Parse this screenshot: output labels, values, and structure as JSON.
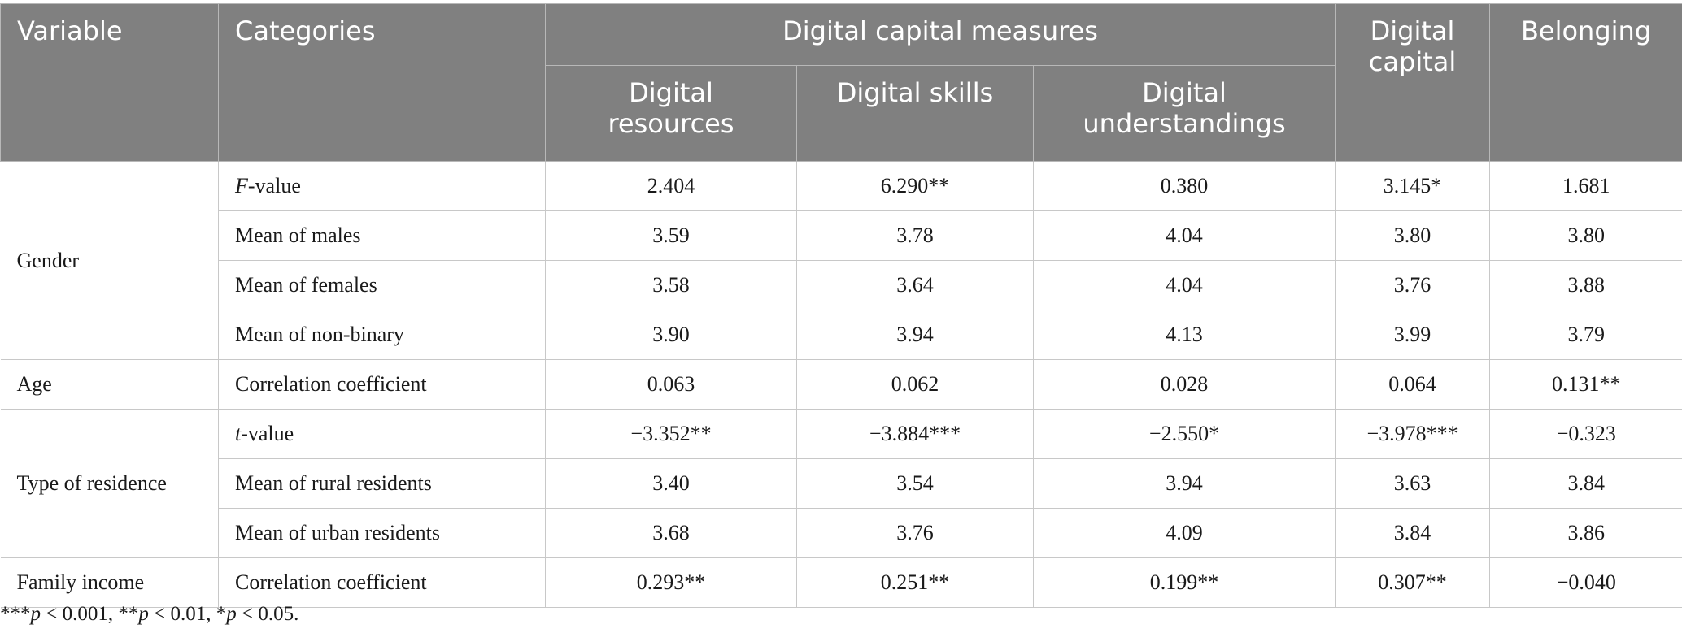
{
  "header": {
    "variable": "Variable",
    "categories": "Categories",
    "digital_capital_measures": "Digital capital measures",
    "digital_resources": "Digital resources",
    "digital_skills": "Digital skills",
    "digital_understandings": "Digital understandings",
    "digital_capital": "Digital capital",
    "belonging": "Belonging"
  },
  "rows": [
    {
      "variable": "Gender",
      "category_italic": "F",
      "category_rest": "-value",
      "values": [
        "2.404",
        "6.290**",
        "0.380",
        "3.145*",
        "1.681"
      ]
    },
    {
      "category": "Mean of males",
      "values": [
        "3.59",
        "3.78",
        "4.04",
        "3.80",
        "3.80"
      ]
    },
    {
      "category": "Mean of females",
      "values": [
        "3.58",
        "3.64",
        "4.04",
        "3.76",
        "3.88"
      ]
    },
    {
      "category": "Mean of non-binary",
      "values": [
        "3.90",
        "3.94",
        "4.13",
        "3.99",
        "3.79"
      ]
    },
    {
      "variable": "Age",
      "category": "Correlation coefficient",
      "values": [
        "0.063",
        "0.062",
        "0.028",
        "0.064",
        "0.131**"
      ]
    },
    {
      "variable": "Type of residence",
      "category_italic": "t",
      "category_rest": "-value",
      "values": [
        "−3.352**",
        "−3.884***",
        "−2.550*",
        "−3.978***",
        "−0.323"
      ]
    },
    {
      "category": "Mean of rural residents",
      "values": [
        "3.40",
        "3.54",
        "3.94",
        "3.63",
        "3.84"
      ]
    },
    {
      "category": "Mean of urban residents",
      "values": [
        "3.68",
        "3.76",
        "4.09",
        "3.84",
        "3.86"
      ]
    },
    {
      "variable": "Family income",
      "category": "Correlation coefficient",
      "values": [
        "0.293**",
        "0.251**",
        "0.199**",
        "0.307**",
        "−0.040"
      ]
    }
  ],
  "footnote": {
    "p1_stars": "***",
    "p1_text": " < 0.001, ",
    "p2_stars": "**",
    "p2_text": " < 0.01, ",
    "p3_stars": "*",
    "p3_text": " < 0.05.",
    "p_symbol": "p"
  },
  "colors": {
    "header_bg": "#808080",
    "header_text": "#ffffff",
    "grid": "#c8c8c8"
  }
}
